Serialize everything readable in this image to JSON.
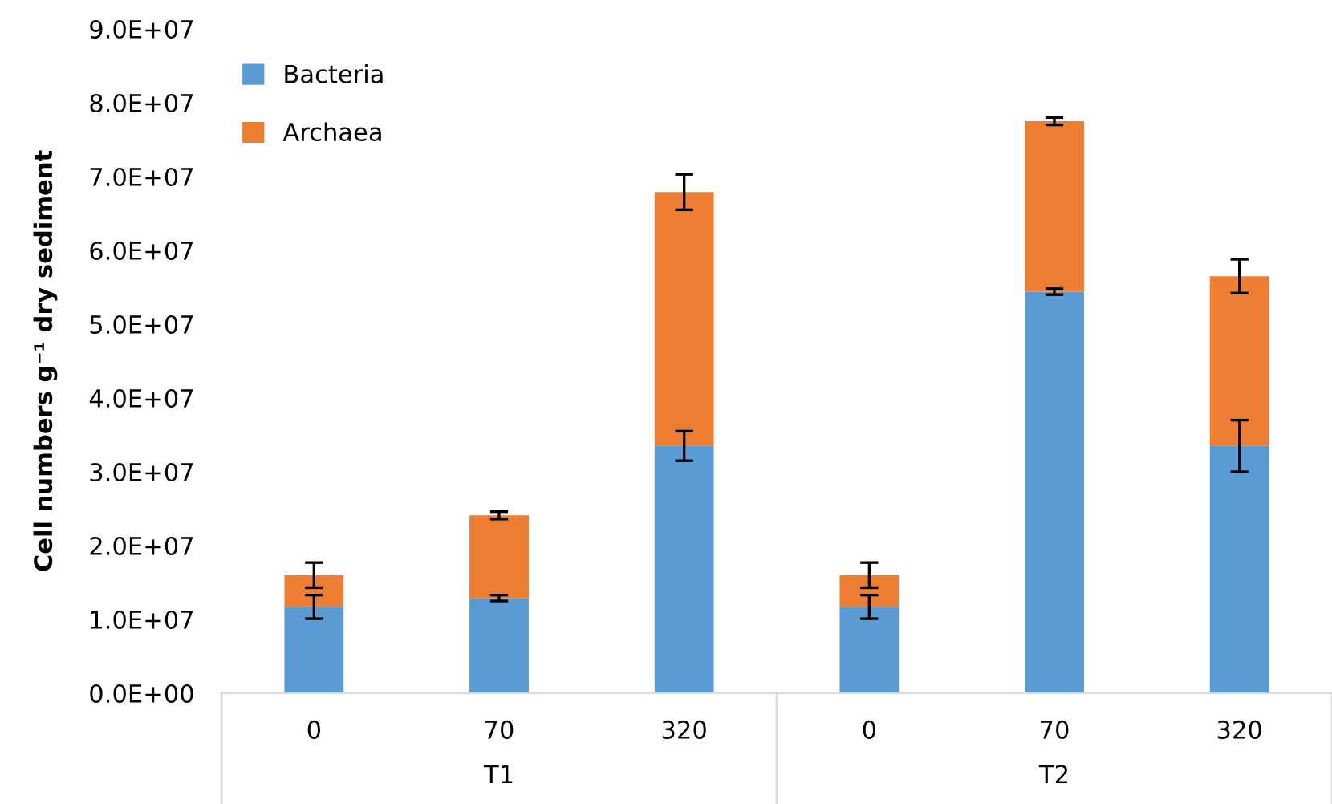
{
  "chart_data": {
    "type": "bar",
    "stacked": true,
    "ylabel": "Cell numbers g⁻¹ dry sediment",
    "categories": [
      "0",
      "70",
      "320",
      "0",
      "70",
      "320"
    ],
    "series": [
      {
        "name": "Bacteria",
        "color": "#5b9bd5",
        "values": [
          11700000.0,
          12900000.0,
          33500000.0,
          11700000.0,
          54400000.0,
          33500000.0
        ],
        "errors": [
          1600000.0,
          400000.0,
          2000000.0,
          1600000.0,
          400000.0,
          3500000.0
        ]
      },
      {
        "name": "Archaea",
        "color": "#ed7d31",
        "values": [
          4300000.0,
          11200000.0,
          34400000.0,
          4300000.0,
          23100000.0,
          23000000.0
        ],
        "errors": [
          1700000.0,
          500000.0,
          2400000.0,
          1700000.0,
          500000.0,
          2300000.0
        ]
      }
    ],
    "ylim": [
      0,
      90000000.0
    ],
    "yticks": [
      {
        "value": 0,
        "label": "0.0E+00"
      },
      {
        "value": 10000000.0,
        "label": "1.0E+07"
      },
      {
        "value": 20000000.0,
        "label": "2.0E+07"
      },
      {
        "value": 30000000.0,
        "label": "3.0E+07"
      },
      {
        "value": 40000000.0,
        "label": "4.0E+07"
      },
      {
        "value": 50000000.0,
        "label": "5.0E+07"
      },
      {
        "value": 60000000.0,
        "label": "6.0E+07"
      },
      {
        "value": 70000000.0,
        "label": "7.0E+07"
      },
      {
        "value": 80000000.0,
        "label": "8.0E+07"
      },
      {
        "value": 90000000.0,
        "label": "9.0E+07"
      }
    ],
    "annotations": [
      "T1",
      "T2"
    ],
    "grid": false,
    "legend": "top left"
  }
}
